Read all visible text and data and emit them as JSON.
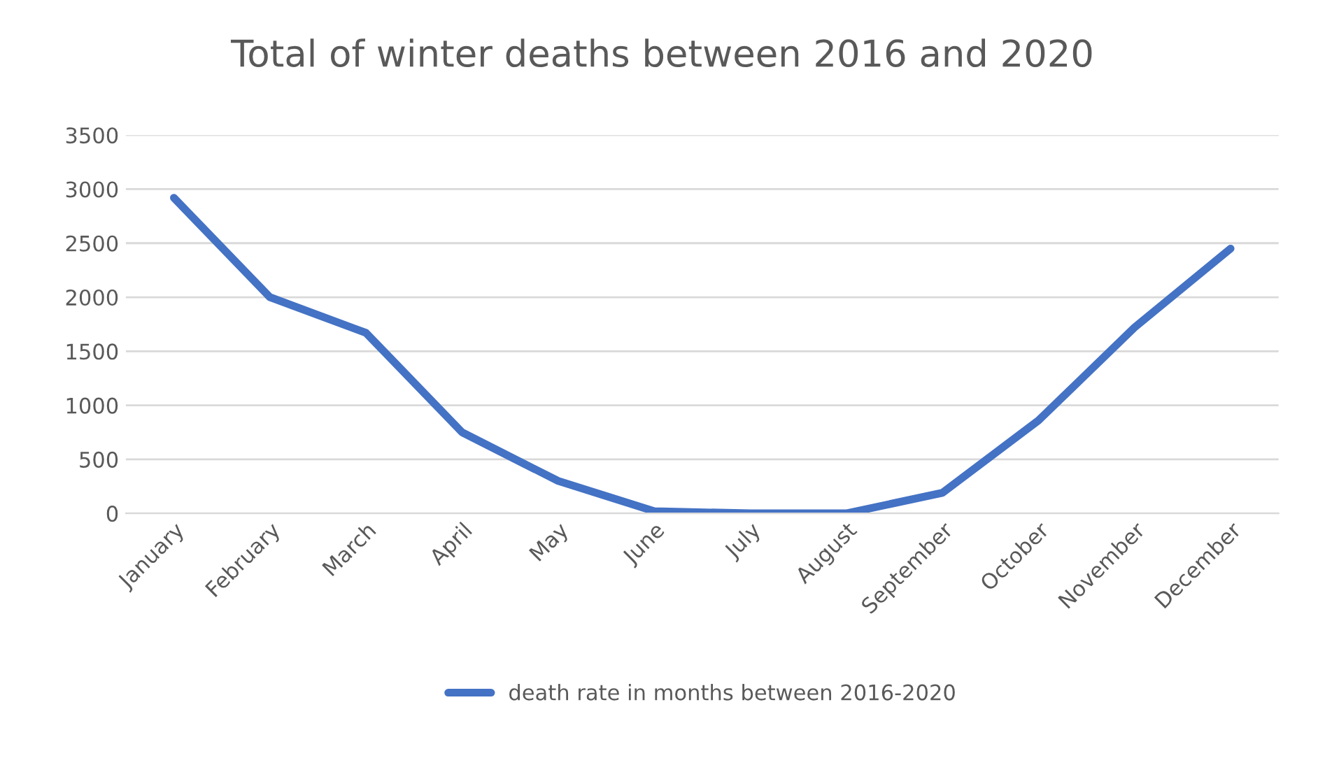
{
  "chart_data": {
    "type": "line",
    "title": "Total of winter deaths between 2016 and 2020",
    "categories": [
      "January",
      "February",
      "March",
      "April",
      "May",
      "June",
      "July",
      "August",
      "September",
      "October",
      "November",
      "December"
    ],
    "series": [
      {
        "name": "death rate in months between 2016-2020",
        "color": "#4472c4",
        "values": [
          2920,
          2000,
          1670,
          750,
          300,
          20,
          0,
          0,
          190,
          860,
          1720,
          2450
        ]
      }
    ],
    "ylim": [
      0,
      3500
    ],
    "yticks": [
      0,
      500,
      1000,
      1500,
      2000,
      2500,
      3000,
      3500
    ],
    "grid": "y",
    "legend": "bottom",
    "marker": "none",
    "line_style": "solid"
  }
}
